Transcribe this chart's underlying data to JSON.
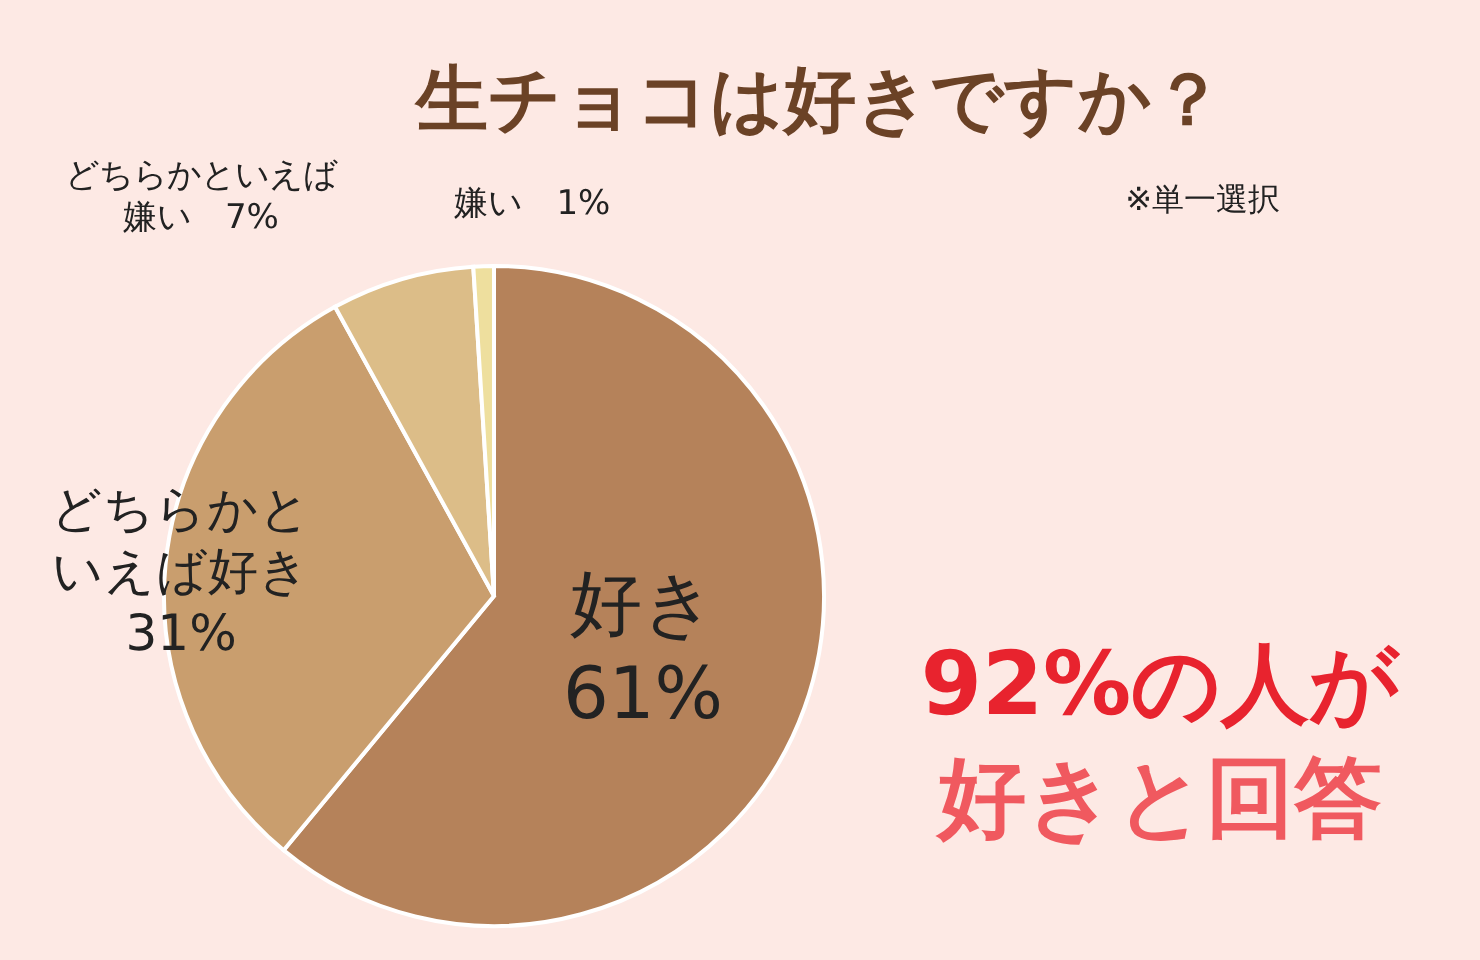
{
  "chart_data": {
    "type": "pie",
    "title": "生チョコは好きですか？",
    "categories": [
      "好き",
      "どちらかといえば好き",
      "どちらかといえば嫌い",
      "嫌い"
    ],
    "values": [
      61,
      31,
      7,
      1
    ],
    "colors": [
      "#b5825a",
      "#c99e6e",
      "#dcbd88",
      "#eedf9e"
    ],
    "value_labels": [
      "61%",
      "31%",
      "7%",
      "1%"
    ],
    "annotations": [
      "※単一選択",
      "92%の人が",
      "好きと回答"
    ]
  }
}
